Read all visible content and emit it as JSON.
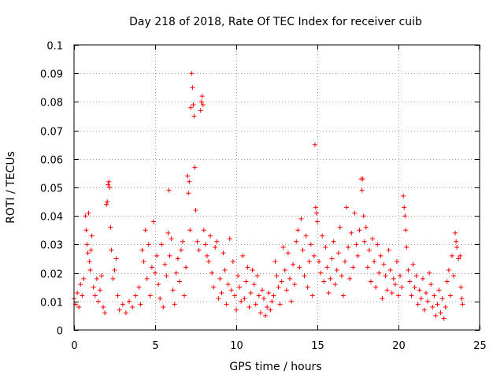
{
  "chart_data": {
    "type": "scatter",
    "title": "Day 218 of 2018, Rate Of TEC Index for receiver cuib",
    "xlabel": "GPS time / hours",
    "ylabel": "ROTI / TECUs",
    "xlim": [
      0,
      25
    ],
    "ylim": [
      0,
      0.1
    ],
    "xticks": [
      0,
      5,
      10,
      15,
      20,
      25
    ],
    "xtick_labels": [
      "0",
      "5",
      "10",
      "15",
      "20",
      "25"
    ],
    "yticks": [
      0,
      0.01,
      0.02,
      0.03,
      0.04,
      0.05,
      0.06,
      0.07,
      0.08,
      0.09,
      0.1
    ],
    "ytick_labels": [
      "0",
      "0.01",
      "0.02",
      "0.03",
      "0.04",
      "0.05",
      "0.06",
      "0.07",
      "0.08",
      "0.09",
      "0.1"
    ],
    "grid": true,
    "marker": "+",
    "color": "#ff0000",
    "series": [
      {
        "name": "ROTI",
        "points": [
          [
            0.0,
            0.011
          ],
          [
            0.1,
            0.009
          ],
          [
            0.2,
            0.013
          ],
          [
            0.3,
            0.008
          ],
          [
            0.4,
            0.016
          ],
          [
            0.5,
            0.012
          ],
          [
            0.6,
            0.018
          ],
          [
            0.7,
            0.04
          ],
          [
            0.75,
            0.035
          ],
          [
            0.8,
            0.03
          ],
          [
            0.85,
            0.027
          ],
          [
            0.9,
            0.041
          ],
          [
            0.95,
            0.024
          ],
          [
            1.0,
            0.021
          ],
          [
            1.05,
            0.028
          ],
          [
            1.1,
            0.033
          ],
          [
            1.2,
            0.015
          ],
          [
            1.3,
            0.012
          ],
          [
            1.4,
            0.018
          ],
          [
            1.5,
            0.01
          ],
          [
            1.6,
            0.014
          ],
          [
            1.7,
            0.019
          ],
          [
            1.8,
            0.008
          ],
          [
            1.9,
            0.006
          ],
          [
            2.0,
            0.044
          ],
          [
            2.05,
            0.045
          ],
          [
            2.1,
            0.051
          ],
          [
            2.15,
            0.052
          ],
          [
            2.2,
            0.05
          ],
          [
            2.25,
            0.036
          ],
          [
            2.3,
            0.028
          ],
          [
            2.4,
            0.018
          ],
          [
            2.5,
            0.021
          ],
          [
            2.6,
            0.025
          ],
          [
            2.7,
            0.012
          ],
          [
            2.8,
            0.007
          ],
          [
            3.0,
            0.009
          ],
          [
            3.2,
            0.006
          ],
          [
            3.4,
            0.01
          ],
          [
            3.6,
            0.008
          ],
          [
            3.8,
            0.012
          ],
          [
            4.0,
            0.015
          ],
          [
            4.1,
            0.009
          ],
          [
            4.2,
            0.028
          ],
          [
            4.3,
            0.024
          ],
          [
            4.4,
            0.035
          ],
          [
            4.5,
            0.018
          ],
          [
            4.6,
            0.03
          ],
          [
            4.7,
            0.012
          ],
          [
            4.8,
            0.022
          ],
          [
            4.9,
            0.038
          ],
          [
            5.0,
            0.02
          ],
          [
            5.1,
            0.026
          ],
          [
            5.2,
            0.016
          ],
          [
            5.3,
            0.011
          ],
          [
            5.4,
            0.03
          ],
          [
            5.5,
            0.008
          ],
          [
            5.6,
            0.023
          ],
          [
            5.7,
            0.019
          ],
          [
            5.8,
            0.034
          ],
          [
            5.85,
            0.049
          ],
          [
            5.9,
            0.026
          ],
          [
            6.0,
            0.032
          ],
          [
            6.1,
            0.014
          ],
          [
            6.2,
            0.009
          ],
          [
            6.3,
            0.02
          ],
          [
            6.4,
            0.025
          ],
          [
            6.5,
            0.017
          ],
          [
            6.6,
            0.028
          ],
          [
            6.7,
            0.031
          ],
          [
            6.8,
            0.012
          ],
          [
            6.9,
            0.022
          ],
          [
            7.0,
            0.054
          ],
          [
            7.05,
            0.048
          ],
          [
            7.1,
            0.052
          ],
          [
            7.15,
            0.035
          ],
          [
            7.2,
            0.078
          ],
          [
            7.25,
            0.09
          ],
          [
            7.3,
            0.085
          ],
          [
            7.35,
            0.079
          ],
          [
            7.4,
            0.075
          ],
          [
            7.45,
            0.057
          ],
          [
            7.5,
            0.042
          ],
          [
            7.6,
            0.031
          ],
          [
            7.7,
            0.028
          ],
          [
            7.8,
            0.077
          ],
          [
            7.85,
            0.08
          ],
          [
            7.9,
            0.082
          ],
          [
            7.95,
            0.079
          ],
          [
            8.0,
            0.035
          ],
          [
            8.1,
            0.03
          ],
          [
            8.2,
            0.026
          ],
          [
            8.3,
            0.024
          ],
          [
            8.4,
            0.033
          ],
          [
            8.5,
            0.02
          ],
          [
            8.6,
            0.015
          ],
          [
            8.7,
            0.029
          ],
          [
            8.8,
            0.031
          ],
          [
            8.9,
            0.011
          ],
          [
            9.0,
            0.018
          ],
          [
            9.1,
            0.013
          ],
          [
            9.2,
            0.027
          ],
          [
            9.3,
            0.021
          ],
          [
            9.4,
            0.009
          ],
          [
            9.5,
            0.016
          ],
          [
            9.6,
            0.032
          ],
          [
            9.7,
            0.014
          ],
          [
            9.8,
            0.024
          ],
          [
            9.9,
            0.012
          ],
          [
            10.0,
            0.007
          ],
          [
            10.1,
            0.019
          ],
          [
            10.2,
            0.015
          ],
          [
            10.3,
            0.01
          ],
          [
            10.4,
            0.026
          ],
          [
            10.5,
            0.011
          ],
          [
            10.6,
            0.017
          ],
          [
            10.7,
            0.022
          ],
          [
            10.8,
            0.008
          ],
          [
            10.9,
            0.013
          ],
          [
            11.0,
            0.021
          ],
          [
            11.1,
            0.016
          ],
          [
            11.2,
            0.009
          ],
          [
            11.3,
            0.019
          ],
          [
            11.4,
            0.012
          ],
          [
            11.5,
            0.006
          ],
          [
            11.6,
            0.014
          ],
          [
            11.7,
            0.011
          ],
          [
            11.8,
            0.005
          ],
          [
            11.9,
            0.008
          ],
          [
            12.0,
            0.013
          ],
          [
            12.1,
            0.007
          ],
          [
            12.2,
            0.01
          ],
          [
            12.3,
            0.012
          ],
          [
            12.4,
            0.024
          ],
          [
            12.5,
            0.019
          ],
          [
            12.6,
            0.015
          ],
          [
            12.7,
            0.009
          ],
          [
            12.8,
            0.017
          ],
          [
            12.9,
            0.029
          ],
          [
            13.0,
            0.021
          ],
          [
            13.1,
            0.014
          ],
          [
            13.2,
            0.027
          ],
          [
            13.3,
            0.018
          ],
          [
            13.4,
            0.01
          ],
          [
            13.5,
            0.023
          ],
          [
            13.6,
            0.016
          ],
          [
            13.7,
            0.031
          ],
          [
            13.8,
            0.035
          ],
          [
            13.9,
            0.022
          ],
          [
            14.0,
            0.039
          ],
          [
            14.1,
            0.028
          ],
          [
            14.2,
            0.019
          ],
          [
            14.3,
            0.033
          ],
          [
            14.4,
            0.015
          ],
          [
            14.5,
            0.024
          ],
          [
            14.6,
            0.03
          ],
          [
            14.7,
            0.012
          ],
          [
            14.8,
            0.026
          ],
          [
            14.85,
            0.065
          ],
          [
            14.9,
            0.043
          ],
          [
            14.95,
            0.041
          ],
          [
            15.0,
            0.038
          ],
          [
            15.1,
            0.024
          ],
          [
            15.2,
            0.02
          ],
          [
            15.3,
            0.033
          ],
          [
            15.4,
            0.017
          ],
          [
            15.5,
            0.029
          ],
          [
            15.6,
            0.022
          ],
          [
            15.7,
            0.013
          ],
          [
            15.8,
            0.018
          ],
          [
            15.9,
            0.025
          ],
          [
            16.0,
            0.031
          ],
          [
            16.1,
            0.016
          ],
          [
            16.2,
            0.021
          ],
          [
            16.3,
            0.027
          ],
          [
            16.4,
            0.036
          ],
          [
            16.5,
            0.019
          ],
          [
            16.6,
            0.012
          ],
          [
            16.7,
            0.024
          ],
          [
            16.8,
            0.043
          ],
          [
            16.9,
            0.029
          ],
          [
            17.0,
            0.018
          ],
          [
            17.1,
            0.034
          ],
          [
            17.2,
            0.022
          ],
          [
            17.3,
            0.041
          ],
          [
            17.4,
            0.03
          ],
          [
            17.5,
            0.026
          ],
          [
            17.6,
            0.035
          ],
          [
            17.7,
            0.053
          ],
          [
            17.75,
            0.049
          ],
          [
            17.8,
            0.053
          ],
          [
            17.85,
            0.04
          ],
          [
            17.9,
            0.031
          ],
          [
            18.0,
            0.036
          ],
          [
            18.1,
            0.022
          ],
          [
            18.2,
            0.028
          ],
          [
            18.3,
            0.017
          ],
          [
            18.4,
            0.032
          ],
          [
            18.5,
            0.024
          ],
          [
            18.6,
            0.015
          ],
          [
            18.7,
            0.03
          ],
          [
            18.8,
            0.02
          ],
          [
            18.9,
            0.026
          ],
          [
            19.0,
            0.011
          ],
          [
            19.1,
            0.023
          ],
          [
            19.2,
            0.019
          ],
          [
            19.3,
            0.014
          ],
          [
            19.4,
            0.028
          ],
          [
            19.5,
            0.021
          ],
          [
            19.6,
            0.013
          ],
          [
            19.7,
            0.018
          ],
          [
            19.8,
            0.016
          ],
          [
            19.9,
            0.024
          ],
          [
            20.0,
            0.012
          ],
          [
            20.1,
            0.019
          ],
          [
            20.2,
            0.015
          ],
          [
            20.3,
            0.047
          ],
          [
            20.35,
            0.043
          ],
          [
            20.4,
            0.04
          ],
          [
            20.45,
            0.035
          ],
          [
            20.5,
            0.029
          ],
          [
            20.6,
            0.021
          ],
          [
            20.7,
            0.017
          ],
          [
            20.8,
            0.012
          ],
          [
            20.9,
            0.023
          ],
          [
            21.0,
            0.015
          ],
          [
            21.1,
            0.019
          ],
          [
            21.2,
            0.009
          ],
          [
            21.3,
            0.014
          ],
          [
            21.4,
            0.011
          ],
          [
            21.5,
            0.018
          ],
          [
            21.6,
            0.007
          ],
          [
            21.7,
            0.013
          ],
          [
            21.8,
            0.01
          ],
          [
            21.9,
            0.02
          ],
          [
            22.0,
            0.016
          ],
          [
            22.1,
            0.008
          ],
          [
            22.2,
            0.012
          ],
          [
            22.3,
            0.005
          ],
          [
            22.4,
            0.009
          ],
          [
            22.5,
            0.014
          ],
          [
            22.6,
            0.006
          ],
          [
            22.7,
            0.011
          ],
          [
            22.8,
            0.004
          ],
          [
            22.9,
            0.008
          ],
          [
            23.0,
            0.017
          ],
          [
            23.1,
            0.021
          ],
          [
            23.2,
            0.012
          ],
          [
            23.3,
            0.026
          ],
          [
            23.4,
            0.019
          ],
          [
            23.5,
            0.034
          ],
          [
            23.55,
            0.031
          ],
          [
            23.6,
            0.029
          ],
          [
            23.7,
            0.025
          ],
          [
            23.8,
            0.026
          ],
          [
            23.85,
            0.015
          ],
          [
            23.9,
            0.011
          ],
          [
            23.95,
            0.009
          ]
        ]
      }
    ]
  }
}
